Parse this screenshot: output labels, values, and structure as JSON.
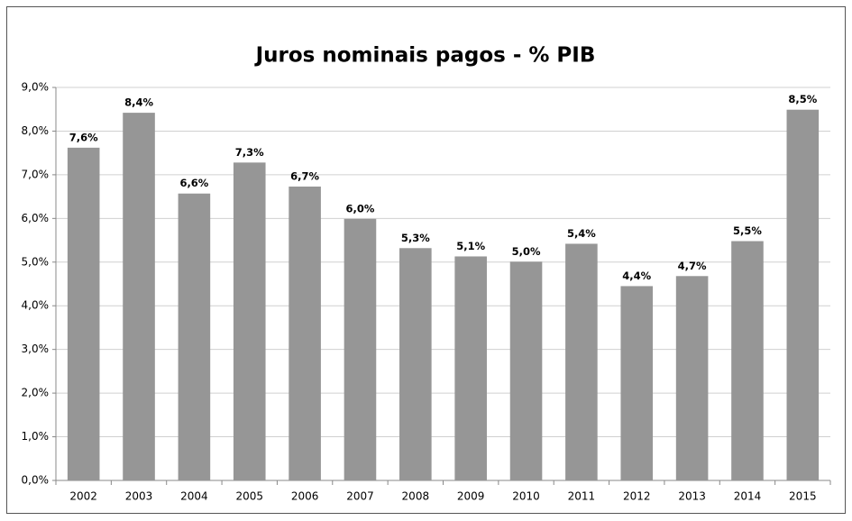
{
  "chart_data": {
    "type": "bar",
    "title": "Juros nominais pagos - % PIB",
    "categories": [
      "2002",
      "2003",
      "2004",
      "2005",
      "2006",
      "2007",
      "2008",
      "2009",
      "2010",
      "2011",
      "2012",
      "2013",
      "2014",
      "2015"
    ],
    "values": [
      7.62,
      8.42,
      6.57,
      7.28,
      6.73,
      5.99,
      5.32,
      5.13,
      5.01,
      5.42,
      4.45,
      4.68,
      5.48,
      8.49
    ],
    "value_labels": [
      "7,6%",
      "8,4%",
      "6,6%",
      "7,3%",
      "6,7%",
      "6,0%",
      "5,3%",
      "5,1%",
      "5,0%",
      "5,4%",
      "4,4%",
      "4,7%",
      "5,5%",
      "8,5%"
    ],
    "color": "#969696",
    "ylim": [
      0,
      9
    ],
    "yticks": [
      {
        "value": 0,
        "label": "0,0%"
      },
      {
        "value": 1,
        "label": "1,0%"
      },
      {
        "value": 2,
        "label": "2,0%"
      },
      {
        "value": 3,
        "label": "3,0%"
      },
      {
        "value": 4,
        "label": "4,0%"
      },
      {
        "value": 5,
        "label": "5,0%"
      },
      {
        "value": 6,
        "label": "6,0%"
      },
      {
        "value": 7,
        "label": "7,0%"
      },
      {
        "value": 8,
        "label": "8,0%"
      },
      {
        "value": 9,
        "label": "9,0%"
      }
    ],
    "grid": true
  }
}
